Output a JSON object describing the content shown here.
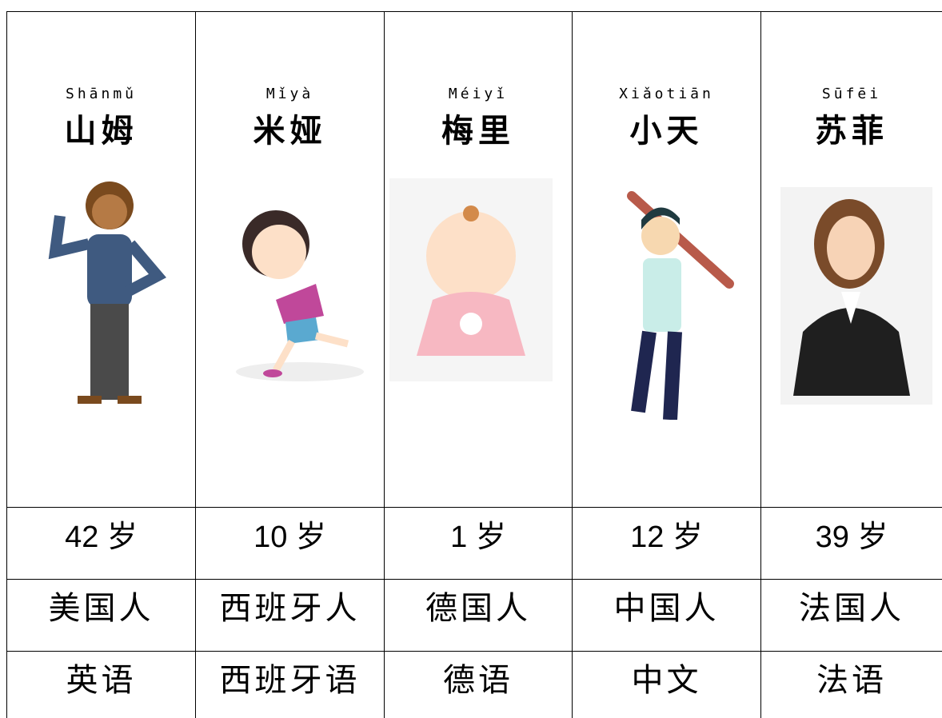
{
  "table": {
    "columns": [
      {
        "pinyin": "Shānmǔ",
        "name": "山姆",
        "age": "42 岁",
        "nationality": "美国人",
        "language": "英语"
      },
      {
        "pinyin": "Mǐyà",
        "name": "米娅",
        "age": "10 岁",
        "nationality": "西班牙人",
        "language": "西班牙语"
      },
      {
        "pinyin": "Méiyǐ",
        "name": "梅里",
        "age": "1 岁",
        "nationality": "德国人",
        "language": "德语"
      },
      {
        "pinyin": "Xiǎotiān",
        "name": "小天",
        "age": "12 岁",
        "nationality": "中国人",
        "language": "中文"
      },
      {
        "pinyin": "Sūfēi",
        "name": "苏菲",
        "age": "39 岁",
        "nationality": "法国人",
        "language": "法语"
      }
    ]
  }
}
